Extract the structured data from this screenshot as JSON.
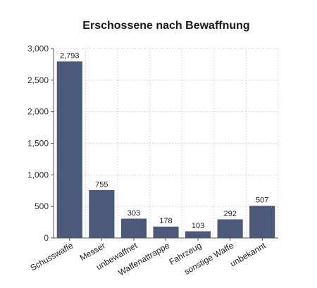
{
  "chart_data": {
    "type": "bar",
    "title": "Erschossene nach Bewaffnung",
    "xlabel": "",
    "ylabel": "",
    "categories": [
      "Schusswaffe",
      "Messer",
      "unbewaffnet",
      "Waffenattrappe",
      "Fahrzeug",
      "sonstige Waffe",
      "unbekannt"
    ],
    "values": [
      2793,
      755,
      303,
      178,
      103,
      292,
      507
    ],
    "ylim": [
      0,
      3000
    ],
    "yticks": [
      0,
      500,
      1000,
      1500,
      2000,
      2500,
      3000
    ],
    "grid": true,
    "legend": "none",
    "bar_color": "#4b5a7a"
  }
}
